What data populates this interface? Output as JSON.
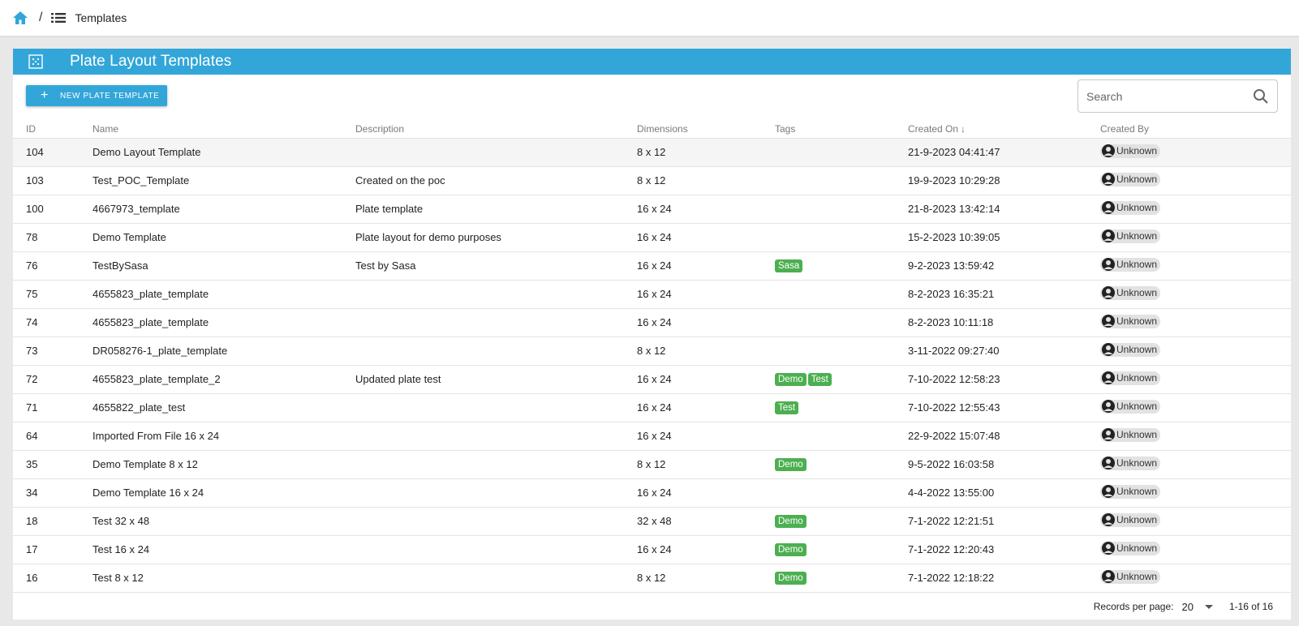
{
  "breadcrumb": {
    "separator": "/",
    "current": "Templates"
  },
  "panel": {
    "title": "Plate Layout Templates"
  },
  "toolbar": {
    "new_button_label": "NEW PLATE TEMPLATE",
    "search_placeholder": "Search"
  },
  "table": {
    "columns": [
      "ID",
      "Name",
      "Description",
      "Dimensions",
      "Tags",
      "Created On",
      "Created By"
    ],
    "sort_column": "Created On",
    "sort_direction": "desc",
    "rows": [
      {
        "id": "104",
        "name": "Demo Layout Template",
        "description": "",
        "dimensions": "8 x 12",
        "tags": [],
        "created_on": "21-9-2023 04:41:47",
        "created_by": "Unknown"
      },
      {
        "id": "103",
        "name": "Test_POC_Template",
        "description": "Created on the poc",
        "dimensions": "8 x 12",
        "tags": [],
        "created_on": "19-9-2023 10:29:28",
        "created_by": "Unknown"
      },
      {
        "id": "100",
        "name": "4667973_template",
        "description": "Plate template",
        "dimensions": "16 x 24",
        "tags": [],
        "created_on": "21-8-2023 13:42:14",
        "created_by": "Unknown"
      },
      {
        "id": "78",
        "name": "Demo Template",
        "description": "Plate layout for demo purposes",
        "dimensions": "16 x 24",
        "tags": [],
        "created_on": "15-2-2023 10:39:05",
        "created_by": "Unknown"
      },
      {
        "id": "76",
        "name": "TestBySasa",
        "description": "Test by Sasa",
        "dimensions": "16 x 24",
        "tags": [
          "Sasa"
        ],
        "created_on": "9-2-2023 13:59:42",
        "created_by": "Unknown"
      },
      {
        "id": "75",
        "name": "4655823_plate_template",
        "description": "",
        "dimensions": "16 x 24",
        "tags": [],
        "created_on": "8-2-2023 16:35:21",
        "created_by": "Unknown"
      },
      {
        "id": "74",
        "name": "4655823_plate_template",
        "description": "",
        "dimensions": "16 x 24",
        "tags": [],
        "created_on": "8-2-2023 10:11:18",
        "created_by": "Unknown"
      },
      {
        "id": "73",
        "name": "DR058276-1_plate_template",
        "description": "",
        "dimensions": "8 x 12",
        "tags": [],
        "created_on": "3-11-2022 09:27:40",
        "created_by": "Unknown"
      },
      {
        "id": "72",
        "name": "4655823_plate_template_2",
        "description": "Updated plate test",
        "dimensions": "16 x 24",
        "tags": [
          "Demo",
          "Test"
        ],
        "created_on": "7-10-2022 12:58:23",
        "created_by": "Unknown"
      },
      {
        "id": "71",
        "name": "4655822_plate_test",
        "description": "",
        "dimensions": "16 x 24",
        "tags": [
          "Test"
        ],
        "created_on": "7-10-2022 12:55:43",
        "created_by": "Unknown"
      },
      {
        "id": "64",
        "name": "Imported From File 16 x 24",
        "description": "",
        "dimensions": "16 x 24",
        "tags": [],
        "created_on": "22-9-2022 15:07:48",
        "created_by": "Unknown"
      },
      {
        "id": "35",
        "name": "Demo Template 8 x 12",
        "description": "",
        "dimensions": "8 x 12",
        "tags": [
          "Demo"
        ],
        "created_on": "9-5-2022 16:03:58",
        "created_by": "Unknown"
      },
      {
        "id": "34",
        "name": "Demo Template 16 x 24",
        "description": "",
        "dimensions": "16 x 24",
        "tags": [],
        "created_on": "4-4-2022 13:55:00",
        "created_by": "Unknown"
      },
      {
        "id": "18",
        "name": "Test 32 x 48",
        "description": "",
        "dimensions": "32 x 48",
        "tags": [
          "Demo"
        ],
        "created_on": "7-1-2022 12:21:51",
        "created_by": "Unknown"
      },
      {
        "id": "17",
        "name": "Test 16 x 24",
        "description": "",
        "dimensions": "16 x 24",
        "tags": [
          "Demo"
        ],
        "created_on": "7-1-2022 12:20:43",
        "created_by": "Unknown"
      },
      {
        "id": "16",
        "name": "Test 8 x 12",
        "description": "",
        "dimensions": "8 x 12",
        "tags": [
          "Demo"
        ],
        "created_on": "7-1-2022 12:18:22",
        "created_by": "Unknown"
      }
    ]
  },
  "footer": {
    "records_per_page_label": "Records per page:",
    "records_per_page_value": "20",
    "range_text": "1-16 of 16"
  },
  "colors": {
    "accent": "#32a6d8",
    "tag": "#4caf50"
  },
  "icons": {
    "home": "home-icon",
    "list": "list-icon",
    "panel": "grid-icon",
    "search": "search-icon",
    "user": "user-icon"
  }
}
